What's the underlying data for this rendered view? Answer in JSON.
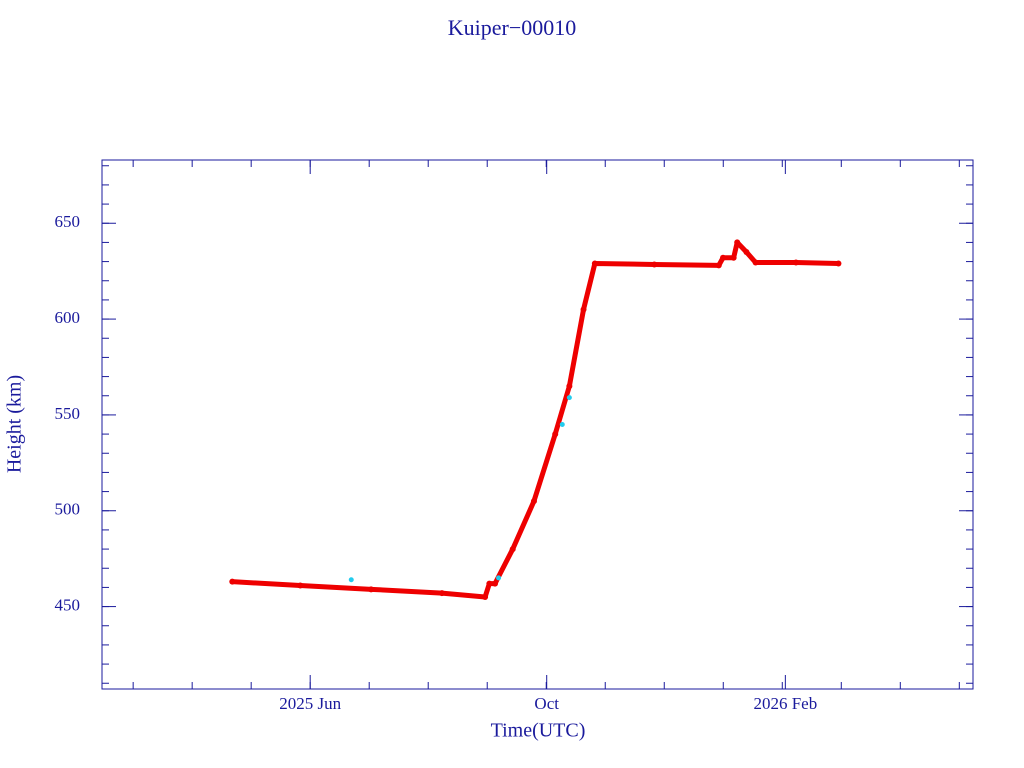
{
  "chart_data": {
    "type": "line",
    "title": "Kuiper−00010",
    "x_label": "Time(UTC)",
    "y_label": "Height (km)",
    "xlim": [
      2025.12,
      2026.35
    ],
    "xticks": [
      {
        "value": 2025.414,
        "label": "2025 Jun"
      },
      {
        "value": 2025.748,
        "label": "Oct"
      },
      {
        "value": 2026.085,
        "label": "2026 Feb"
      }
    ],
    "ylim": [
      407,
      683
    ],
    "yticks": [
      450,
      500,
      550,
      600,
      650
    ],
    "series": [
      {
        "color": "#ee0000",
        "x": [
          2025.304,
          2025.4,
          2025.5,
          2025.6,
          2025.661,
          2025.667,
          2025.675,
          2025.7,
          2025.73,
          2025.76,
          2025.78,
          2025.8,
          2025.816,
          2025.9,
          2025.991,
          2025.997,
          2026.012,
          2026.017,
          2026.03,
          2026.043,
          2026.1,
          2026.16
        ],
        "values": [
          463,
          461,
          459,
          457,
          455,
          462,
          462,
          480,
          505,
          540,
          565,
          605,
          629,
          628.5,
          628,
          632,
          632,
          640,
          635,
          629.5,
          629.5,
          629
        ]
      },
      {
        "color": "#22ccee",
        "x": [
          2025.472,
          2025.68,
          2025.77,
          2025.78
        ],
        "values": [
          464,
          465,
          545,
          559
        ]
      }
    ]
  }
}
